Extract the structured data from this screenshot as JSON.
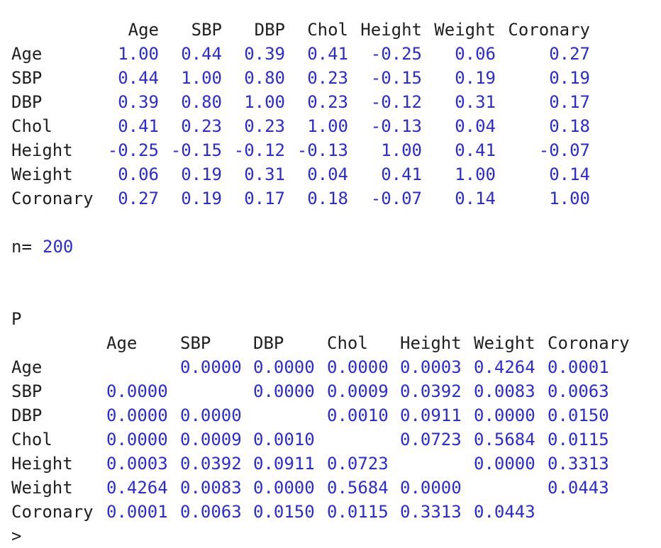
{
  "correlation": {
    "columns": [
      "Age",
      "SBP",
      "DBP",
      "Chol",
      "Height",
      "Weight",
      "Coronary"
    ],
    "rows": [
      {
        "label": "Age",
        "values": [
          "1.00",
          "0.44",
          "0.39",
          "0.41",
          "-0.25",
          "0.06",
          "0.27"
        ]
      },
      {
        "label": "SBP",
        "values": [
          "0.44",
          "1.00",
          "0.80",
          "0.23",
          "-0.15",
          "0.19",
          "0.19"
        ]
      },
      {
        "label": "DBP",
        "values": [
          "0.39",
          "0.80",
          "1.00",
          "0.23",
          "-0.12",
          "0.31",
          "0.17"
        ]
      },
      {
        "label": "Chol",
        "values": [
          "0.41",
          "0.23",
          "0.23",
          "1.00",
          "-0.13",
          "0.04",
          "0.18"
        ]
      },
      {
        "label": "Height",
        "values": [
          "-0.25",
          "-0.15",
          "-0.12",
          "-0.13",
          "1.00",
          "0.41",
          "-0.07"
        ]
      },
      {
        "label": "Weight",
        "values": [
          "0.06",
          "0.19",
          "0.31",
          "0.04",
          "0.41",
          "1.00",
          "0.14"
        ]
      },
      {
        "label": "Coronary",
        "values": [
          "0.27",
          "0.19",
          "0.17",
          "0.18",
          "-0.07",
          "0.14",
          "1.00"
        ]
      }
    ]
  },
  "n": {
    "label": "n=",
    "value": "200"
  },
  "pvalues": {
    "title": "P",
    "columns": [
      "Age",
      "SBP",
      "DBP",
      "Chol",
      "Height",
      "Weight",
      "Coronary"
    ],
    "rows": [
      {
        "label": "Age",
        "values": [
          "",
          "0.0000",
          "0.0000",
          "0.0000",
          "0.0003",
          "0.4264",
          "0.0001"
        ]
      },
      {
        "label": "SBP",
        "values": [
          "0.0000",
          "",
          "0.0000",
          "0.0009",
          "0.0392",
          "0.0083",
          "0.0063"
        ]
      },
      {
        "label": "DBP",
        "values": [
          "0.0000",
          "0.0000",
          "",
          "0.0010",
          "0.0911",
          "0.0000",
          "0.0150"
        ]
      },
      {
        "label": "Chol",
        "values": [
          "0.0000",
          "0.0009",
          "0.0010",
          "",
          "0.0723",
          "0.5684",
          "0.0115"
        ]
      },
      {
        "label": "Height",
        "values": [
          "0.0003",
          "0.0392",
          "0.0911",
          "0.0723",
          "",
          "0.0000",
          "0.3313"
        ]
      },
      {
        "label": "Weight",
        "values": [
          "0.4264",
          "0.0083",
          "0.0000",
          "0.5684",
          "0.0000",
          "",
          "0.0443"
        ]
      },
      {
        "label": "Coronary",
        "values": [
          "0.0001",
          "0.0063",
          "0.0150",
          "0.0115",
          "0.3313",
          "0.0443",
          ""
        ]
      }
    ]
  },
  "prompt": ">",
  "colors": {
    "number": "#2b2bd6",
    "text": "#1f1f1f",
    "background": "#ffffff"
  }
}
